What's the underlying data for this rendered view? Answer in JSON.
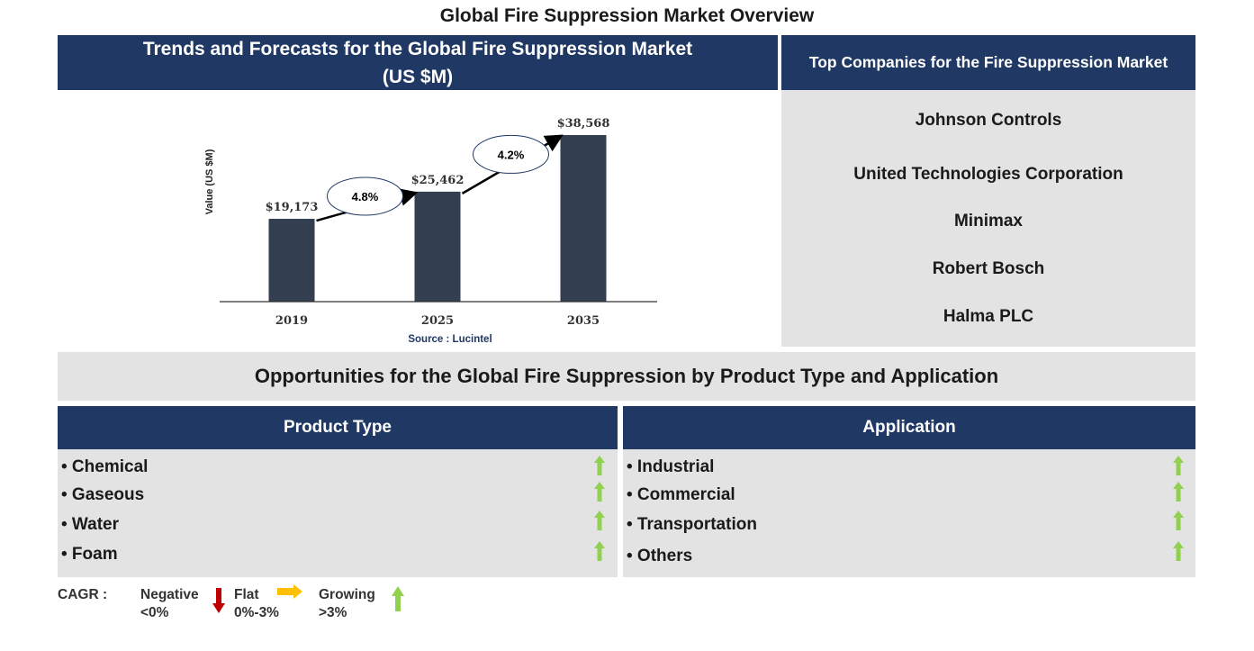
{
  "title": "Global Fire Suppression Market Overview",
  "chart_header": "Trends and Forecasts for the Global Fire Suppression Market (US $M)",
  "companies_header": "Top Companies for the Fire Suppression Market",
  "companies": [
    "Johnson Controls",
    "United Technologies Corporation",
    "Minimax",
    "Robert Bosch",
    "Halma PLC"
  ],
  "opportunities_header": "Opportunities for the Global Fire Suppression by Product Type and Application",
  "product_type": {
    "header": "Product Type",
    "items": [
      "• Chemical",
      "• Gaseous",
      "• Water",
      "• Foam"
    ],
    "trend": [
      "growing",
      "growing",
      "growing",
      "growing"
    ]
  },
  "application": {
    "header": "Application",
    "items": [
      "• Industrial",
      "• Commercial",
      "• Transportation",
      "• Others"
    ],
    "trend": [
      "growing",
      "growing",
      "growing",
      "growing"
    ]
  },
  "legend": {
    "cagr_label": "CAGR  :",
    "negative": "Negative",
    "negative_range": "<0%",
    "flat": "Flat",
    "flat_range": "0%-3%",
    "growing": "Growing",
    "growing_range": ">3%"
  },
  "colors": {
    "header_blue": "#1f3864",
    "bar": "#333f50",
    "panel_gray": "#e3e3e3",
    "growing_arrow": "#92d050",
    "negative_arrow": "#c00000",
    "flat_arrow": "#ffc000"
  },
  "chart_data": {
    "type": "bar",
    "categories": [
      "2019",
      "2025",
      "2035"
    ],
    "values": [
      19173,
      25462,
      38568
    ],
    "value_labels": [
      "$19,173",
      "$25,462",
      "$38,568"
    ],
    "ylabel": "Value (US $M)",
    "source": "Source : Lucintel",
    "cagr_annotations": [
      "4.8%",
      "4.2%"
    ],
    "ylim": [
      0,
      40000
    ],
    "grid": false
  }
}
